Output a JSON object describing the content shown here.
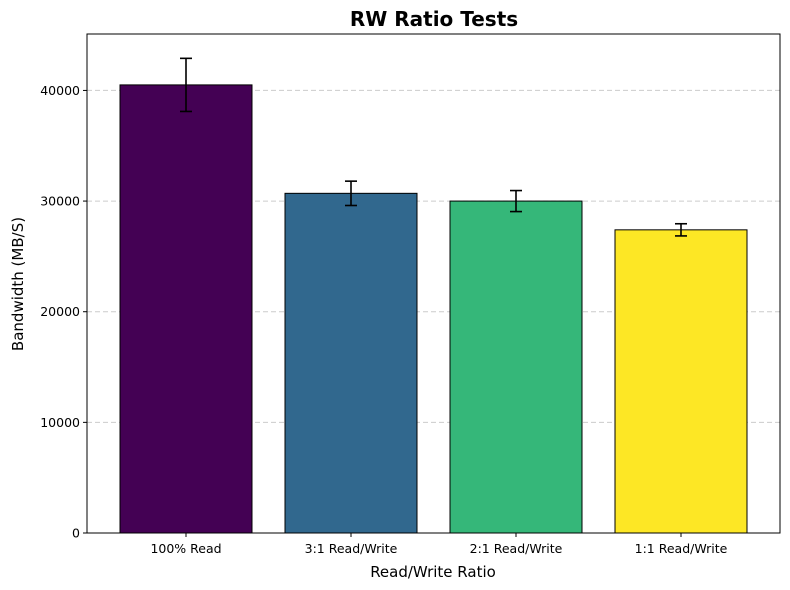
{
  "chart_data": {
    "type": "bar",
    "title": "RW Ratio Tests",
    "xlabel": "Read/Write Ratio",
    "ylabel": "Bandwidth (MB/S)",
    "categories": [
      "100% Read",
      "3:1 Read/Write",
      "2:1 Read/Write",
      "1:1 Read/Write"
    ],
    "values": [
      40500,
      30700,
      30000,
      27400
    ],
    "errors": [
      2400,
      1100,
      950,
      550
    ],
    "colors": [
      "#440154",
      "#31688e",
      "#35b779",
      "#fde725"
    ],
    "ylim": [
      0,
      45100
    ],
    "yticks": [
      0,
      10000,
      20000,
      30000,
      40000
    ],
    "ytick_labels": [
      "0",
      "10000",
      "20000",
      "30000",
      "40000"
    ],
    "grid": "y-dashed",
    "legend": "none"
  }
}
